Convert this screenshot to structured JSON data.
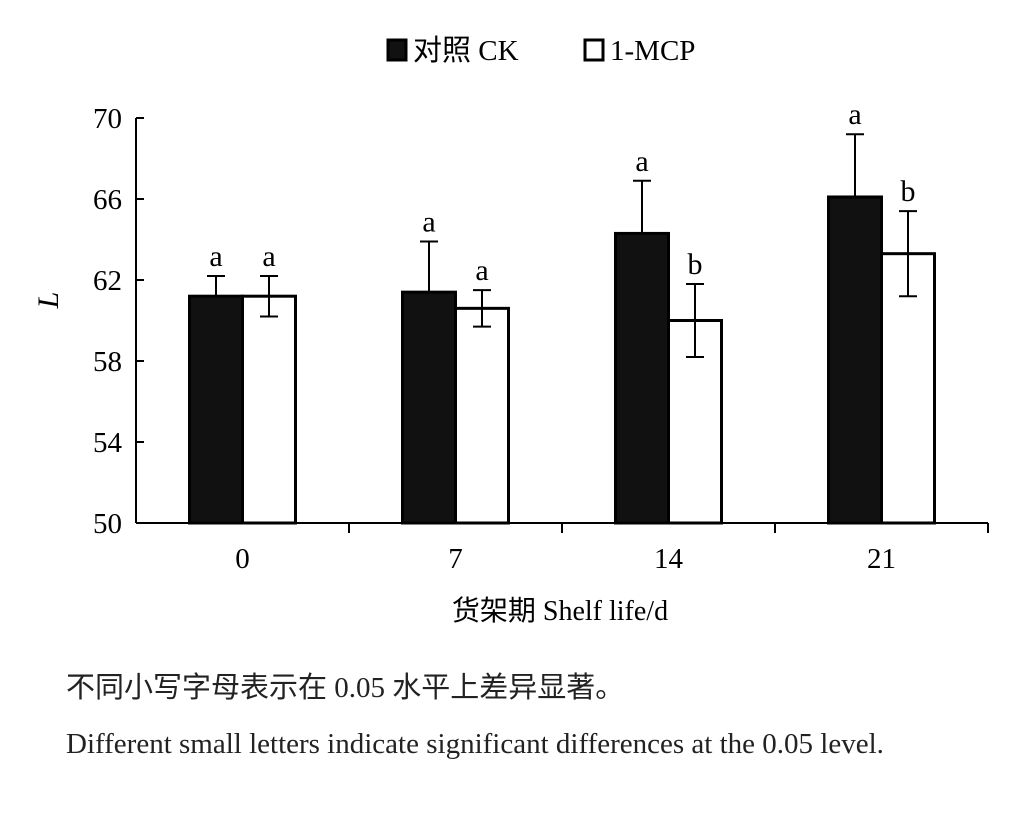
{
  "chart_data": {
    "type": "bar",
    "categories": [
      "0",
      "7",
      "14",
      "21"
    ],
    "series": [
      {
        "name": "对照 CK",
        "fill": "#111111",
        "values": [
          61.2,
          61.4,
          64.3,
          66.1
        ],
        "errors": [
          1.0,
          2.5,
          2.6,
          3.1
        ],
        "letters": [
          "a",
          "a",
          "a",
          "a"
        ]
      },
      {
        "name": "1-MCP",
        "fill": "#ffffff",
        "values": [
          61.2,
          60.6,
          60.0,
          63.3
        ],
        "errors": [
          1.0,
          0.9,
          1.8,
          2.1
        ],
        "letters": [
          "a",
          "a",
          "b",
          "b"
        ]
      }
    ],
    "xlabel": "货架期 Shelf life/d",
    "ylabel": "L",
    "ylim": [
      50,
      70
    ],
    "yticks": [
      50,
      54,
      58,
      62,
      66,
      70
    ],
    "grid": false,
    "legend_position": "top-center"
  },
  "note_zh": "不同小写字母表示在 0.05 水平上差异显著。",
  "note_en": "Different small letters indicate significant differences at the 0.05 level."
}
